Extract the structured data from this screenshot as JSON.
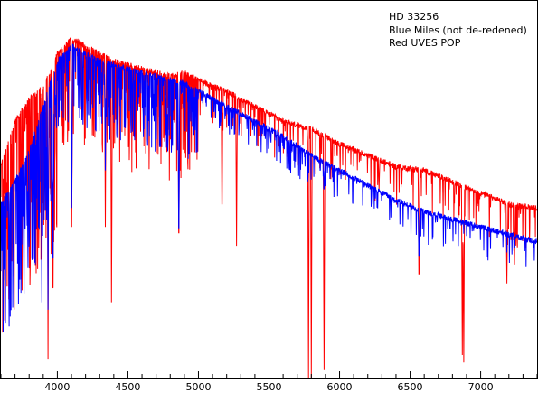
{
  "chart_data": {
    "type": "line",
    "xlim": [
      3600,
      7400
    ],
    "ylim": [
      0,
      1
    ],
    "x_ticks": [
      4000,
      4500,
      5000,
      5500,
      6000,
      6500,
      7000
    ],
    "x_tick_labels": [
      "4000",
      "4500",
      "5000",
      "5500",
      "6000",
      "6500",
      "7000"
    ],
    "y_axis_labels": "none",
    "grid": false,
    "legend_placement": "top-right",
    "annotation": {
      "lines": [
        "HD 33256",
        "Blue Miles (not de-redened)",
        "Red  UVES POP"
      ]
    },
    "series": [
      {
        "name": "Red  UVES POP",
        "color": "#ff0000",
        "continuum": [
          [
            3600,
            0.56
          ],
          [
            3700,
            0.68
          ],
          [
            3800,
            0.74
          ],
          [
            3900,
            0.77
          ],
          [
            4000,
            0.86
          ],
          [
            4100,
            0.9
          ],
          [
            4200,
            0.88
          ],
          [
            4300,
            0.86
          ],
          [
            4400,
            0.84
          ],
          [
            4500,
            0.83
          ],
          [
            4600,
            0.82
          ],
          [
            4700,
            0.81
          ],
          [
            4800,
            0.8
          ],
          [
            4900,
            0.81
          ],
          [
            5000,
            0.79
          ],
          [
            5200,
            0.76
          ],
          [
            5400,
            0.72
          ],
          [
            5600,
            0.68
          ],
          [
            5800,
            0.66
          ],
          [
            6000,
            0.62
          ],
          [
            6200,
            0.59
          ],
          [
            6400,
            0.56
          ],
          [
            6600,
            0.55
          ],
          [
            6800,
            0.52
          ],
          [
            7000,
            0.49
          ],
          [
            7200,
            0.46
          ],
          [
            7400,
            0.45
          ]
        ],
        "absorption_lines": [
          [
            3934,
            0.05
          ],
          [
            3969,
            0.12
          ],
          [
            4102,
            0.4
          ],
          [
            4340,
            0.4
          ],
          [
            4384,
            0.2
          ],
          [
            4861,
            0.3
          ],
          [
            5167,
            0.4
          ],
          [
            5270,
            0.35
          ],
          [
            5780,
            0.0
          ],
          [
            5800,
            0.0
          ],
          [
            5890,
            0.02
          ],
          [
            6280,
            0.5
          ],
          [
            6563,
            0.22
          ],
          [
            6870,
            0.06
          ],
          [
            6880,
            0.04
          ],
          [
            7186,
            0.25
          ],
          [
            7240,
            0.3
          ]
        ]
      },
      {
        "name": "Blue Miles (not de-redened)",
        "color": "#0000ff",
        "continuum": [
          [
            3600,
            0.46
          ],
          [
            3700,
            0.52
          ],
          [
            3800,
            0.6
          ],
          [
            3900,
            0.72
          ],
          [
            4000,
            0.84
          ],
          [
            4100,
            0.88
          ],
          [
            4200,
            0.86
          ],
          [
            4300,
            0.84
          ],
          [
            4400,
            0.83
          ],
          [
            4500,
            0.82
          ],
          [
            4600,
            0.81
          ],
          [
            4700,
            0.8
          ],
          [
            4800,
            0.79
          ],
          [
            4900,
            0.78
          ],
          [
            5000,
            0.76
          ],
          [
            5200,
            0.72
          ],
          [
            5400,
            0.68
          ],
          [
            5600,
            0.64
          ],
          [
            5800,
            0.59
          ],
          [
            6000,
            0.55
          ],
          [
            6200,
            0.51
          ],
          [
            6400,
            0.47
          ],
          [
            6600,
            0.44
          ],
          [
            6800,
            0.42
          ],
          [
            7000,
            0.4
          ],
          [
            7200,
            0.38
          ],
          [
            7400,
            0.36
          ]
        ],
        "absorption_lines": [
          [
            3890,
            0.2
          ],
          [
            3934,
            0.18
          ],
          [
            3969,
            0.22
          ],
          [
            4102,
            0.45
          ],
          [
            4340,
            0.55
          ],
          [
            4861,
            0.32
          ],
          [
            5890,
            0.5
          ],
          [
            6563,
            0.3
          ]
        ]
      }
    ]
  }
}
